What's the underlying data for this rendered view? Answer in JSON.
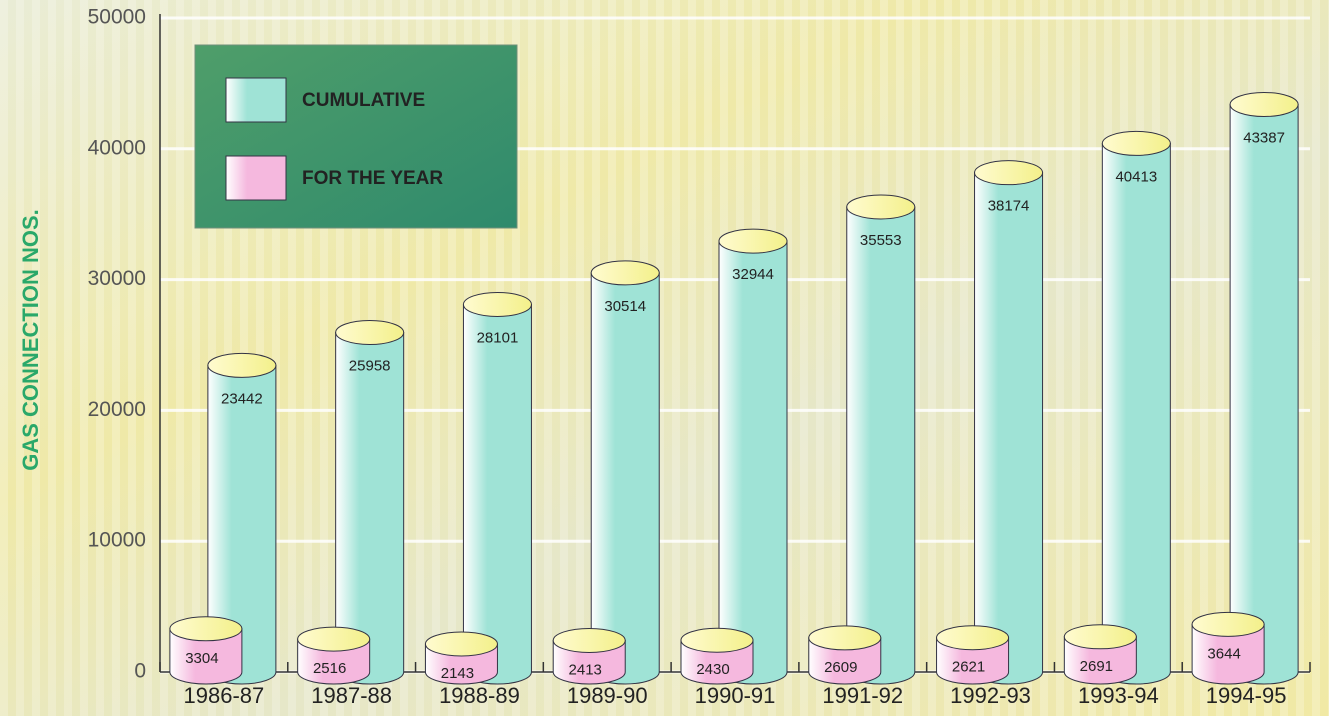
{
  "chart_data": {
    "type": "cylinder-bar",
    "y_label": "GAS CONNECTION NOS.",
    "categories": [
      "1986-87",
      "1987-88",
      "1988-89",
      "1989-90",
      "1990-91",
      "1991-92",
      "1992-93",
      "1993-94",
      "1994-95"
    ],
    "series": [
      {
        "name": "CUMULATIVE",
        "color": "#9fe3d6",
        "values": [
          23442,
          25958,
          28101,
          30514,
          32944,
          35553,
          38174,
          40413,
          43387
        ]
      },
      {
        "name": "FOR THE YEAR",
        "color": "#f5b8de",
        "values": [
          3304,
          2516,
          2143,
          2413,
          2430,
          2609,
          2621,
          2691,
          3644
        ]
      }
    ],
    "ylim": [
      0,
      50000
    ],
    "yticks": [
      0,
      10000,
      20000,
      30000,
      40000,
      50000
    ],
    "grid": true,
    "legend": "upper left"
  }
}
